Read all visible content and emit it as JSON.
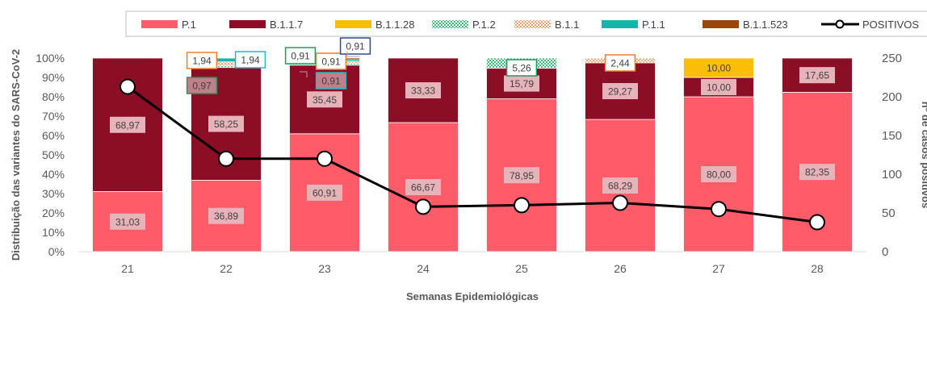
{
  "chart_data": {
    "type": "bar",
    "stacked": true,
    "categories": [
      "21",
      "22",
      "23",
      "24",
      "25",
      "26",
      "27",
      "28"
    ],
    "xlabel": "Semanas Epidemiológicas",
    "ylabel": "Distribuição das variantes do SARS-CoV-2",
    "y2label": "nº de casos positivos",
    "ylim": [
      0,
      100
    ],
    "y2lim": [
      0,
      250
    ],
    "yticks": [
      "0%",
      "10%",
      "20%",
      "30%",
      "40%",
      "50%",
      "60%",
      "70%",
      "80%",
      "90%",
      "100%"
    ],
    "y2ticks": [
      "0",
      "50",
      "100",
      "150",
      "200",
      "250"
    ],
    "legend_position": "top",
    "grid": false,
    "series": [
      {
        "name": "P.1",
        "color": "#ff5b69",
        "pattern": "solid",
        "label_box": "#e5b3b8",
        "values": [
          31.03,
          36.89,
          60.91,
          66.67,
          78.95,
          68.29,
          80.0,
          82.35
        ],
        "labels": [
          "31,03",
          "36,89",
          "60,91",
          "66,67",
          "78,95",
          "68,29",
          "80,00",
          "82,35"
        ]
      },
      {
        "name": "B.1.1.7",
        "color": "#8c0e26",
        "pattern": "solid",
        "label_box": "#e5b3b8",
        "values": [
          68.97,
          58.25,
          35.45,
          33.33,
          15.79,
          29.27,
          10.0,
          17.65
        ],
        "labels": [
          "68,97",
          "58,25",
          "35,45",
          "33,33",
          "15,79",
          "29,27",
          "10,00",
          "17,65"
        ]
      },
      {
        "name": "B.1.1.28",
        "color": "#fbbd06",
        "pattern": "solid",
        "label_box": "#fbbd06",
        "values": [
          0,
          0,
          0,
          0,
          0,
          0,
          10.0,
          0
        ],
        "labels": [
          "",
          "",
          "",
          "",
          "",
          "",
          "10,00",
          ""
        ]
      },
      {
        "name": "P.1.2",
        "color": "#3cbf79",
        "pattern": "checker",
        "label_box": "#21995a",
        "values": [
          0,
          0.97,
          0.91,
          0,
          5.26,
          0,
          0,
          0
        ],
        "labels": [
          "",
          "0,97",
          "0,91",
          "",
          "5,26",
          "",
          "",
          ""
        ]
      },
      {
        "name": "B.1.1",
        "color": "#f4a070",
        "pattern": "checker",
        "label_box": "#ed7d31",
        "values": [
          0,
          1.94,
          0.91,
          0,
          0,
          2.44,
          0,
          0
        ],
        "labels": [
          "",
          "1,94",
          "0,91",
          "",
          "",
          "2,44",
          "",
          ""
        ]
      },
      {
        "name": "P.1.1",
        "color": "#14b4a8",
        "pattern": "solid",
        "label_box": "#2bb5c1",
        "values": [
          0,
          1.94,
          0.91,
          0,
          0,
          0,
          0,
          0
        ],
        "labels": [
          "",
          "1,94",
          "0,91",
          "",
          "",
          "",
          "",
          ""
        ]
      },
      {
        "name": "B.1.1.523",
        "color": "#9c4508",
        "pattern": "solid",
        "label_box": "#2f4a8a",
        "values": [
          0,
          0,
          0.91,
          0,
          0,
          0,
          0,
          0
        ],
        "labels": [
          "",
          "",
          "0,91",
          "",
          "",
          "",
          "",
          ""
        ]
      }
    ],
    "line_series": {
      "name": "POSITIVOS",
      "color": "#000000",
      "axis": "secondary",
      "values": [
        213,
        120,
        120,
        58,
        60,
        63,
        55,
        38
      ]
    }
  }
}
